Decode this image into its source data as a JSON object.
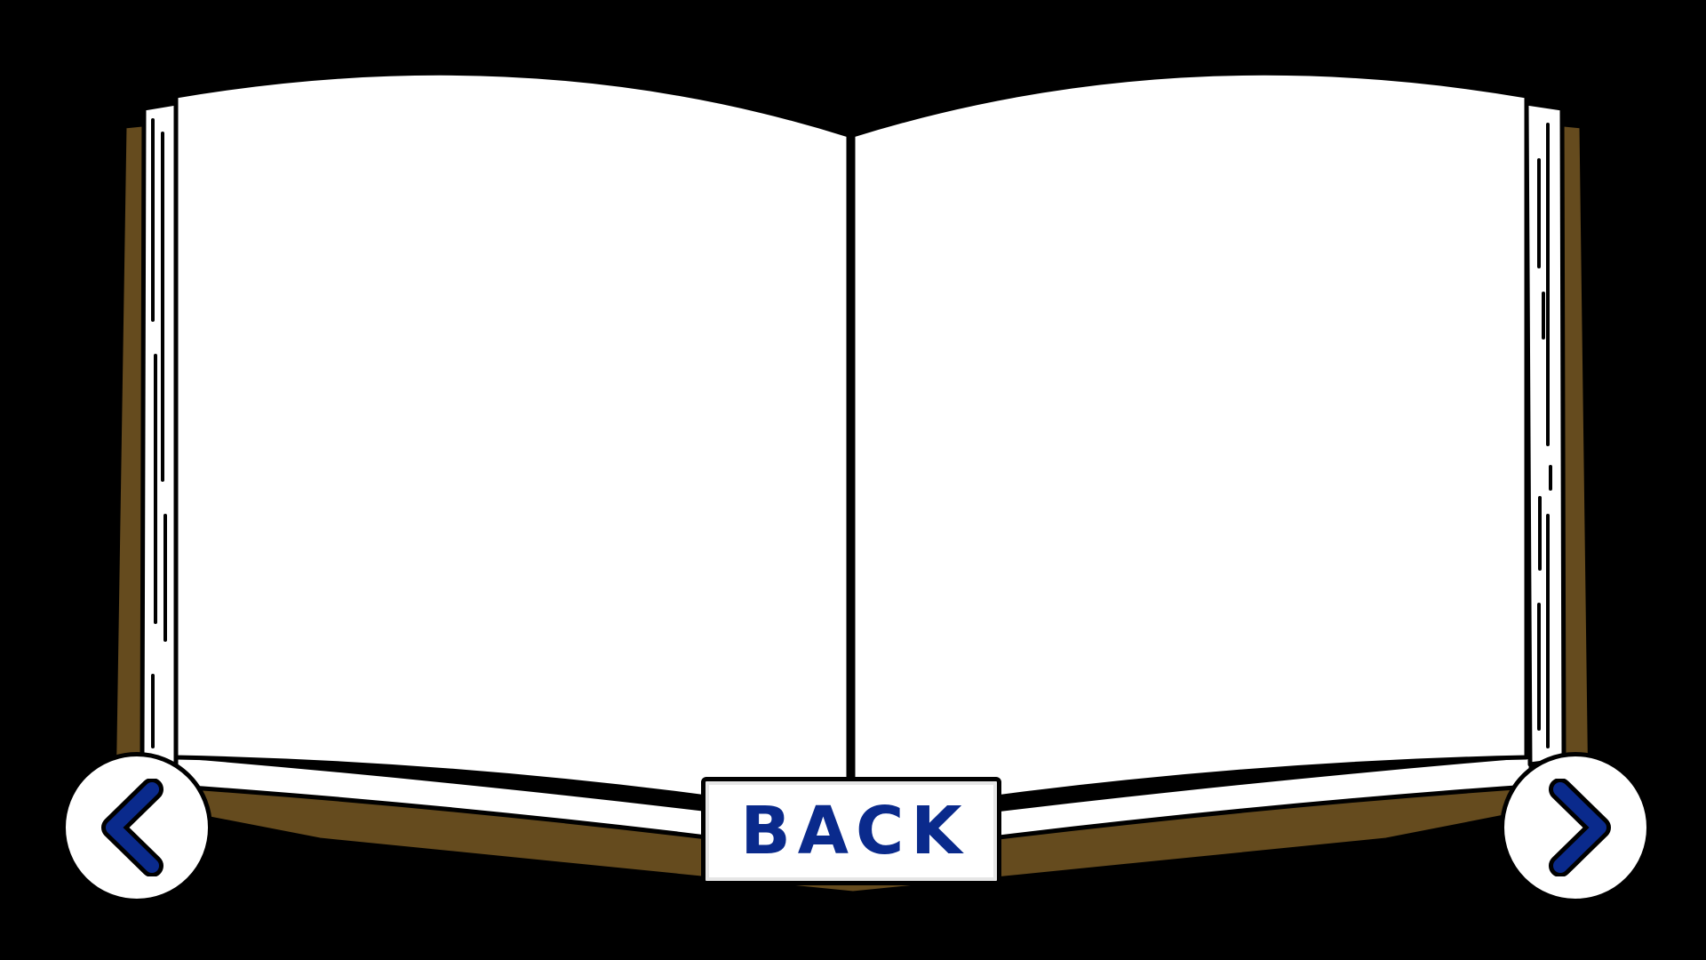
{
  "colors": {
    "background": "#000000",
    "cover": "#654b1e",
    "page": "#ffffff",
    "outline": "#000000",
    "accent": "#0a2a8c"
  },
  "navigation": {
    "prev_icon": "chevron-left-icon",
    "next_icon": "chevron-right-icon",
    "back_label": "BACK"
  }
}
